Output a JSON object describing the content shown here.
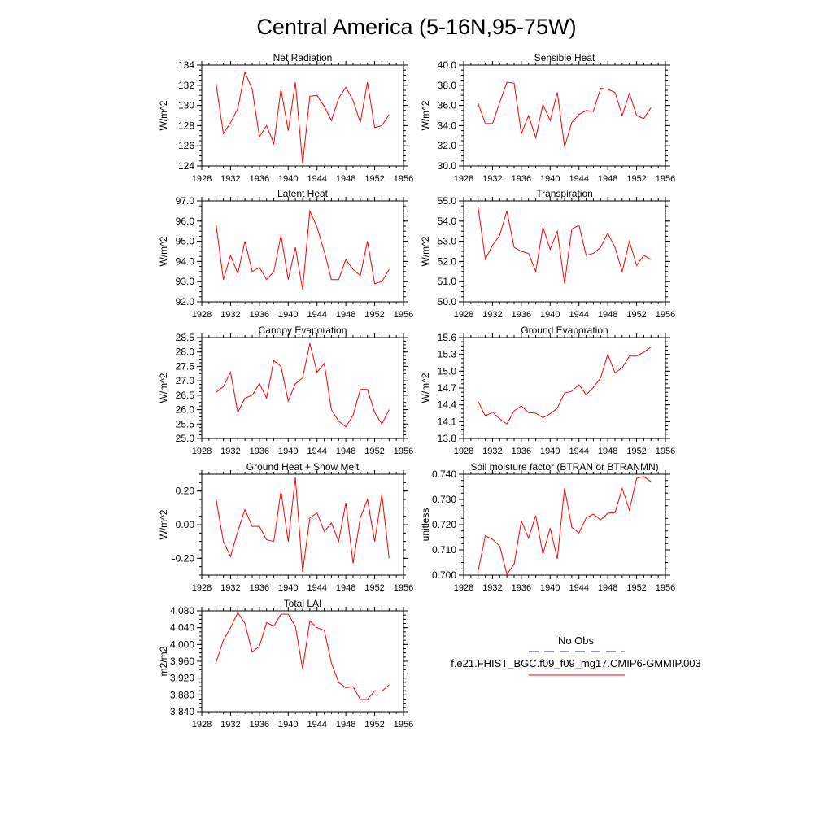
{
  "title": "Central America (5-16N,95-75W)",
  "colors": {
    "model_line": "#ff0000",
    "obs_line": "#1f2d8f",
    "axis": "#000000"
  },
  "legend": {
    "obs_label": "No Obs",
    "model_label": "f.e21.FHIST_BGC.f09_f09_mg17.CMIP6-GMMIP.003"
  },
  "chart_data": [
    {
      "type": "line",
      "title": "Net Radiation",
      "ylabel": "W/m^2",
      "xlim": [
        1928,
        1956
      ],
      "xticks": [
        "1928",
        "1932",
        "1936",
        "1940",
        "1944",
        "1948",
        "1952",
        "1956"
      ],
      "ylim": [
        124,
        134
      ],
      "yticks": [
        "124",
        "126",
        "128",
        "130",
        "132",
        "134"
      ],
      "series": [
        {
          "x": [
            1930,
            1931,
            1932,
            1933,
            1934,
            1935,
            1936,
            1937,
            1938,
            1939,
            1940,
            1941,
            1942,
            1943,
            1944,
            1945,
            1946,
            1947,
            1948,
            1949,
            1950,
            1951,
            1952,
            1953,
            1954
          ],
          "y": [
            132.1,
            127.2,
            128.3,
            129.7,
            133.3,
            131.6,
            126.9,
            128.0,
            126.2,
            131.6,
            127.5,
            132.3,
            124.2,
            130.9,
            131.0,
            129.9,
            128.5,
            130.7,
            131.8,
            130.5,
            128.3,
            132.3,
            127.8,
            128.0,
            129.1
          ]
        }
      ]
    },
    {
      "type": "line",
      "title": "Sensible Heat",
      "ylabel": "W/m^2",
      "xlim": [
        1928,
        1956
      ],
      "xticks": [
        "1928",
        "1932",
        "1936",
        "1940",
        "1944",
        "1948",
        "1952",
        "1956"
      ],
      "ylim": [
        30,
        40
      ],
      "yticks": [
        "30.0",
        "32.0",
        "34.0",
        "36.0",
        "38.0",
        "40.0"
      ],
      "series": [
        {
          "x": [
            1930,
            1931,
            1932,
            1933,
            1934,
            1935,
            1936,
            1937,
            1938,
            1939,
            1940,
            1941,
            1942,
            1943,
            1944,
            1945,
            1946,
            1947,
            1948,
            1949,
            1950,
            1951,
            1952,
            1953,
            1954
          ],
          "y": [
            36.2,
            34.2,
            34.2,
            36.3,
            38.3,
            38.2,
            33.2,
            35.0,
            32.8,
            36.1,
            34.5,
            37.3,
            31.9,
            34.3,
            35.1,
            35.5,
            35.4,
            37.7,
            37.6,
            37.3,
            35.0,
            37.2,
            35.0,
            34.7,
            35.8
          ]
        }
      ]
    },
    {
      "type": "line",
      "title": "Latent Heat",
      "ylabel": "W/m^2",
      "xlim": [
        1928,
        1956
      ],
      "xticks": [
        "1928",
        "1932",
        "1936",
        "1940",
        "1944",
        "1948",
        "1952",
        "1956"
      ],
      "ylim": [
        92,
        97
      ],
      "yticks": [
        "92.0",
        "93.0",
        "94.0",
        "95.0",
        "96.0",
        "97.0"
      ],
      "series": [
        {
          "x": [
            1930,
            1931,
            1932,
            1933,
            1934,
            1935,
            1936,
            1937,
            1938,
            1939,
            1940,
            1941,
            1942,
            1943,
            1944,
            1945,
            1946,
            1947,
            1948,
            1949,
            1950,
            1951,
            1952,
            1953,
            1954
          ],
          "y": [
            95.8,
            93.1,
            94.3,
            93.4,
            95.0,
            93.5,
            93.7,
            93.1,
            93.5,
            95.3,
            93.1,
            94.7,
            92.6,
            96.5,
            95.7,
            94.5,
            93.1,
            93.1,
            94.1,
            93.6,
            93.3,
            95.0,
            92.9,
            93.0,
            93.6
          ]
        }
      ]
    },
    {
      "type": "line",
      "title": "Transpiration",
      "ylabel": "W/m^2",
      "xlim": [
        1928,
        1956
      ],
      "xticks": [
        "1928",
        "1932",
        "1936",
        "1940",
        "1944",
        "1948",
        "1952",
        "1956"
      ],
      "ylim": [
        50,
        55
      ],
      "yticks": [
        "50.0",
        "51.0",
        "52.0",
        "53.0",
        "54.0",
        "55.0"
      ],
      "series": [
        {
          "x": [
            1930,
            1931,
            1932,
            1933,
            1934,
            1935,
            1936,
            1937,
            1938,
            1939,
            1940,
            1941,
            1942,
            1943,
            1944,
            1945,
            1946,
            1947,
            1948,
            1949,
            1950,
            1951,
            1952,
            1953,
            1954
          ],
          "y": [
            54.7,
            52.1,
            52.8,
            53.3,
            54.5,
            52.7,
            52.5,
            52.4,
            51.5,
            53.7,
            52.6,
            53.5,
            50.9,
            53.6,
            53.8,
            52.3,
            52.4,
            52.7,
            53.4,
            52.7,
            51.5,
            53.0,
            51.8,
            52.3,
            52.1
          ]
        }
      ]
    },
    {
      "type": "line",
      "title": "Canopy Evaporation",
      "ylabel": "W/m^2",
      "xlim": [
        1928,
        1956
      ],
      "xticks": [
        "1928",
        "1932",
        "1936",
        "1940",
        "1944",
        "1948",
        "1952",
        "1956"
      ],
      "ylim": [
        25,
        28.5
      ],
      "yticks": [
        "25.0",
        "25.5",
        "26.0",
        "26.5",
        "27.0",
        "27.5",
        "28.0",
        "28.5"
      ],
      "series": [
        {
          "x": [
            1930,
            1931,
            1932,
            1933,
            1934,
            1935,
            1936,
            1937,
            1938,
            1939,
            1940,
            1941,
            1942,
            1943,
            1944,
            1945,
            1946,
            1947,
            1948,
            1949,
            1950,
            1951,
            1952,
            1953,
            1954
          ],
          "y": [
            26.6,
            26.8,
            27.3,
            25.9,
            26.4,
            26.5,
            26.9,
            26.4,
            27.7,
            27.5,
            26.3,
            26.9,
            27.1,
            28.3,
            27.3,
            27.6,
            26.0,
            25.6,
            25.4,
            25.8,
            26.7,
            26.7,
            25.9,
            25.5,
            26.0
          ]
        }
      ]
    },
    {
      "type": "line",
      "title": "Ground Evaporation",
      "ylabel": "W/m^2",
      "xlim": [
        1928,
        1956
      ],
      "xticks": [
        "1928",
        "1932",
        "1936",
        "1940",
        "1944",
        "1948",
        "1952",
        "1956"
      ],
      "ylim": [
        13.8,
        15.6
      ],
      "yticks": [
        "13.8",
        "14.1",
        "14.4",
        "14.7",
        "15.0",
        "15.3",
        "15.6"
      ],
      "series": [
        {
          "x": [
            1930,
            1931,
            1932,
            1933,
            1934,
            1935,
            1936,
            1937,
            1938,
            1939,
            1940,
            1941,
            1942,
            1943,
            1944,
            1945,
            1946,
            1947,
            1948,
            1949,
            1950,
            1951,
            1952,
            1953,
            1954
          ],
          "y": [
            14.46,
            14.2,
            14.27,
            14.15,
            14.06,
            14.29,
            14.38,
            14.26,
            14.25,
            14.17,
            14.24,
            14.34,
            14.61,
            14.64,
            14.76,
            14.58,
            14.71,
            14.88,
            15.3,
            14.97,
            15.06,
            15.27,
            15.27,
            15.34,
            15.43
          ]
        }
      ]
    },
    {
      "type": "line",
      "title": "Ground Heat + Snow Melt",
      "ylabel": "W/m^2",
      "xlim": [
        1928,
        1956
      ],
      "xticks": [
        "1928",
        "1932",
        "1936",
        "1940",
        "1944",
        "1948",
        "1952",
        "1956"
      ],
      "ylim": [
        -0.3,
        0.3
      ],
      "yticks": [
        "-0.20",
        "0.00",
        "0.20"
      ],
      "ytick_values": [
        -0.2,
        0.0,
        0.2
      ],
      "series": [
        {
          "x": [
            1930,
            1931,
            1932,
            1933,
            1934,
            1935,
            1936,
            1937,
            1938,
            1939,
            1940,
            1941,
            1942,
            1943,
            1944,
            1945,
            1946,
            1947,
            1948,
            1949,
            1950,
            1951,
            1952,
            1953,
            1954
          ],
          "y": [
            0.15,
            -0.1,
            -0.19,
            -0.04,
            0.09,
            -0.01,
            -0.01,
            -0.09,
            -0.1,
            0.2,
            -0.1,
            0.28,
            -0.28,
            0.04,
            0.07,
            -0.04,
            0.01,
            -0.1,
            0.13,
            -0.23,
            0.04,
            0.15,
            -0.1,
            0.18,
            -0.2
          ]
        }
      ]
    },
    {
      "type": "line",
      "title": "Soil moisture factor (BTRAN or BTRANMN)",
      "ylabel": "unitless",
      "xlim": [
        1928,
        1956
      ],
      "xticks": [
        "1928",
        "1932",
        "1936",
        "1940",
        "1944",
        "1948",
        "1952",
        "1956"
      ],
      "ylim": [
        0.7,
        0.74
      ],
      "yticks": [
        "0.700",
        "0.710",
        "0.720",
        "0.730",
        "0.740"
      ],
      "series": [
        {
          "x": [
            1930,
            1931,
            1932,
            1933,
            1934,
            1935,
            1936,
            1937,
            1938,
            1939,
            1940,
            1941,
            1942,
            1943,
            1944,
            1945,
            1946,
            1947,
            1948,
            1949,
            1950,
            1951,
            1952,
            1953,
            1954
          ],
          "y": [
            0.7015,
            0.7156,
            0.7142,
            0.7115,
            0.7004,
            0.7043,
            0.7215,
            0.7147,
            0.7236,
            0.7083,
            0.7186,
            0.7065,
            0.7345,
            0.7189,
            0.7167,
            0.7227,
            0.7242,
            0.7219,
            0.7245,
            0.7248,
            0.7344,
            0.7257,
            0.7384,
            0.7391,
            0.737
          ]
        }
      ]
    },
    {
      "type": "line",
      "title": "Total LAI",
      "ylabel": "m2/m2",
      "xlim": [
        1928,
        1956
      ],
      "xticks": [
        "1928",
        "1932",
        "1936",
        "1940",
        "1944",
        "1948",
        "1952",
        "1956"
      ],
      "ylim": [
        3.84,
        4.08
      ],
      "yticks": [
        "3.840",
        "3.880",
        "3.920",
        "3.960",
        "4.000",
        "4.040",
        "4.080"
      ],
      "series": [
        {
          "x": [
            1930,
            1931,
            1932,
            1933,
            1934,
            1935,
            1936,
            1937,
            1938,
            1939,
            1940,
            1941,
            1942,
            1943,
            1944,
            1945,
            1946,
            1947,
            1948,
            1949,
            1950,
            1951,
            1952,
            1953,
            1954
          ],
          "y": [
            3.958,
            4.01,
            4.04,
            4.076,
            4.05,
            3.982,
            3.996,
            4.052,
            4.044,
            4.072,
            4.072,
            4.043,
            3.942,
            4.056,
            4.04,
            4.034,
            3.956,
            3.91,
            3.897,
            3.9,
            3.869,
            3.869,
            3.89,
            3.889,
            3.904
          ]
        }
      ]
    }
  ]
}
